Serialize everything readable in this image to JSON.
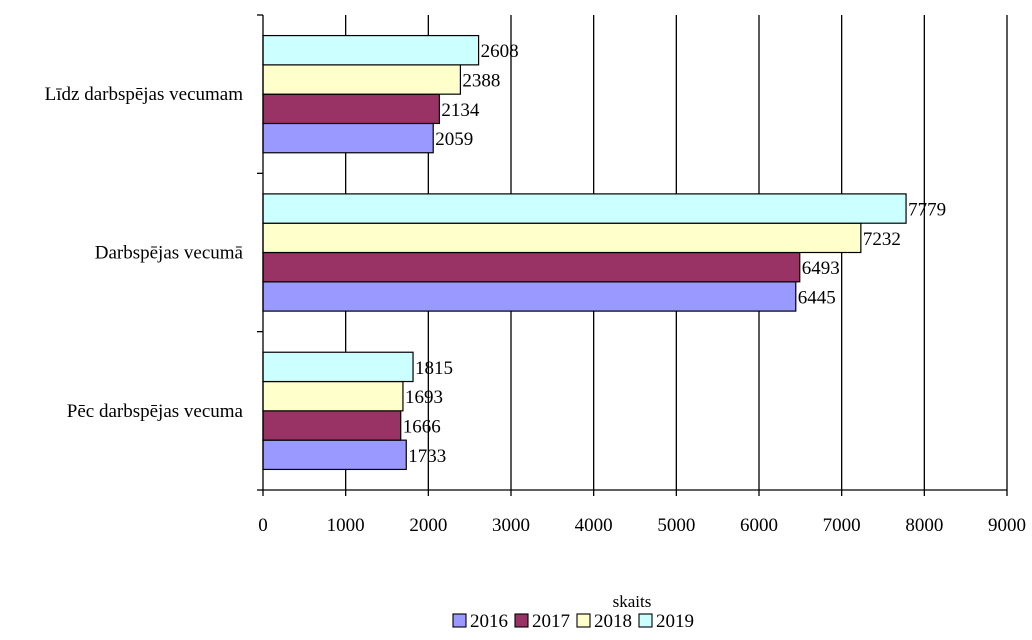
{
  "chart_data": {
    "type": "bar",
    "orientation": "horizontal",
    "categories": [
      "Līdz darbspējas vecumam",
      "Darbspējas vecumā",
      "Pēc darbspējas vecuma"
    ],
    "series": [
      {
        "name": "2016",
        "color": "#9999ff",
        "values": [
          2059,
          6445,
          1733
        ]
      },
      {
        "name": "2017",
        "color": "#993366",
        "values": [
          2134,
          6493,
          1666
        ]
      },
      {
        "name": "2018",
        "color": "#ffffcc",
        "values": [
          2388,
          7232,
          1693
        ]
      },
      {
        "name": "2019",
        "color": "#ccffff",
        "values": [
          2608,
          7779,
          1815
        ]
      }
    ],
    "xlabel": "skaits",
    "ylabel": "",
    "xlim": [
      0,
      9000
    ],
    "xticks": [
      "0",
      "1000",
      "2000",
      "3000",
      "4000",
      "5000",
      "6000",
      "7000",
      "8000",
      "9000"
    ],
    "grid": "vertical",
    "legend_position": "bottom",
    "data_labels": true
  }
}
